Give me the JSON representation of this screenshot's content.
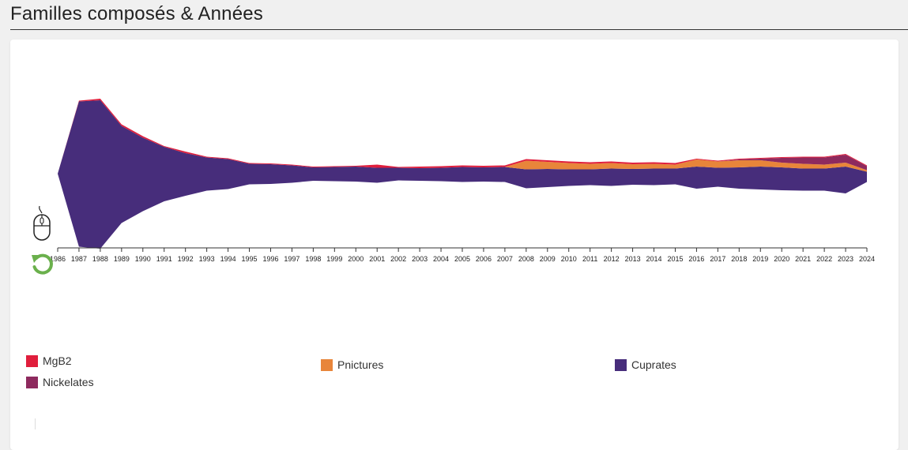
{
  "page": {
    "title": "Familles composés & Années"
  },
  "chart_data": {
    "type": "area",
    "subtype": "streamgraph",
    "x": [
      1986,
      1987,
      1988,
      1989,
      1990,
      1991,
      1992,
      1993,
      1994,
      1995,
      1996,
      1997,
      1998,
      1999,
      2000,
      2001,
      2002,
      2003,
      2004,
      2005,
      2006,
      2007,
      2008,
      2009,
      2010,
      2011,
      2012,
      2013,
      2014,
      2015,
      2016,
      2017,
      2018,
      2019,
      2020,
      2021,
      2022,
      2023,
      2024
    ],
    "tick_labels": [
      "1986",
      "1987",
      "1988",
      "1989",
      "1990",
      "1991",
      "1992",
      "1993",
      "1994",
      "1995",
      "1996",
      "1997",
      "1998",
      "1999",
      "2000",
      "2001",
      "2002",
      "2003",
      "2004",
      "2005",
      "2006",
      "2007",
      "2008",
      "2009",
      "2010",
      "2011",
      "2012",
      "2013",
      "2014",
      "2015",
      "2016",
      "2017",
      "2018",
      "2019",
      "2020",
      "2021",
      "2022",
      "2023",
      "2024"
    ],
    "series": [
      {
        "name": "Cuprates",
        "color": "#472d7b",
        "values": [
          0,
          184,
          188,
          123,
          93,
          69,
          54,
          42,
          38,
          26,
          25,
          22,
          17,
          18,
          19,
          19,
          16,
          16,
          17,
          19,
          18,
          19,
          24,
          23,
          21,
          20,
          22,
          20,
          21,
          20,
          28,
          24,
          27,
          29,
          29,
          28,
          28,
          34,
          13
        ]
      },
      {
        "name": "Pnictures",
        "color": "#e8853a",
        "values": [
          0,
          0,
          0,
          0,
          0,
          0,
          0,
          0,
          0,
          0,
          0,
          0,
          0,
          0,
          0,
          0,
          0,
          0,
          0,
          0,
          0,
          0,
          11,
          9,
          8,
          7,
          7,
          6,
          6,
          5,
          9,
          8,
          9,
          8,
          6,
          6,
          5,
          5,
          2
        ]
      },
      {
        "name": "Nickelates",
        "color": "#8e2a5e",
        "values": [
          0,
          0,
          0,
          0,
          0,
          0,
          0,
          0,
          0,
          0,
          0,
          0,
          0,
          0,
          0,
          0,
          0,
          0,
          0,
          0,
          0,
          0,
          0,
          0,
          0,
          0,
          0,
          0,
          0,
          0,
          0,
          0,
          1,
          2,
          6,
          8,
          9,
          10,
          5
        ]
      },
      {
        "name": "MgB2",
        "color": "#e01e3c",
        "values": [
          0,
          1,
          2,
          2,
          2,
          1,
          2,
          1,
          1,
          1,
          1,
          1,
          1,
          1,
          1,
          4,
          1,
          2,
          2,
          2,
          2,
          2,
          2,
          2,
          2,
          2,
          2,
          2,
          2,
          2,
          1,
          1,
          1,
          1,
          1,
          1,
          1,
          1,
          1
        ]
      }
    ],
    "legend": {
      "placement": "bottom",
      "items": [
        {
          "name": "MgB2",
          "color": "#e01e3c"
        },
        {
          "name": "Pnictures",
          "color": "#e8853a"
        },
        {
          "name": "Cuprates",
          "color": "#472d7b"
        },
        {
          "name": "Nickelates",
          "color": "#8e2a5e"
        }
      ]
    },
    "title": "",
    "xlabel": "",
    "ylabel": ""
  },
  "icons": {
    "mouse": "mouse-scroll-icon",
    "reset": "reset-zoom-icon"
  }
}
